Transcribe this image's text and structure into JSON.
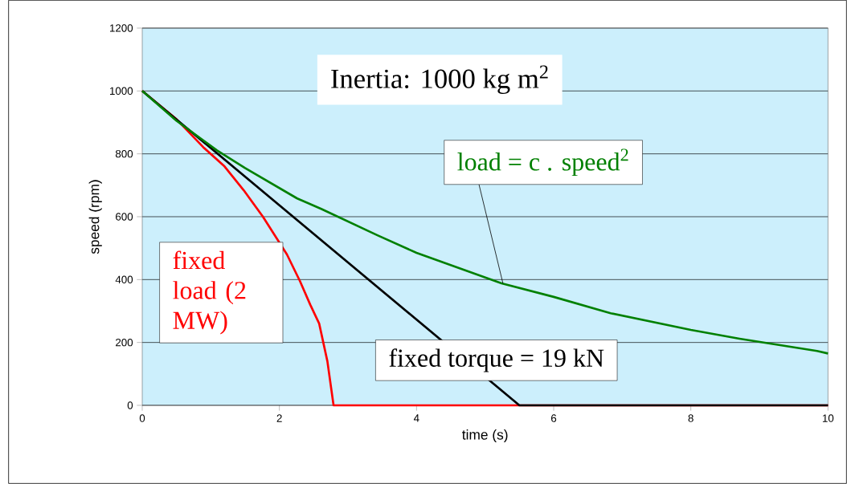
{
  "chart_data": {
    "type": "line",
    "xlabel": "time (s)",
    "ylabel": "speed (rpm)",
    "xlim": [
      0,
      10
    ],
    "ylim": [
      0,
      1200
    ],
    "xticks": [
      0,
      2,
      4,
      6,
      8,
      10
    ],
    "yticks": [
      0,
      200,
      400,
      600,
      800,
      1000,
      1200
    ],
    "grid": "y",
    "legend": false,
    "marker": "none",
    "line_style": "solid",
    "series": [
      {
        "name": "fixed load (2 MW)",
        "color": "#ff0000",
        "x": [
          0,
          0.5,
          0.89,
          1.2,
          1.48,
          1.76,
          2.11,
          2.3,
          2.45,
          2.58,
          2.7,
          2.79,
          10
        ],
        "values": [
          1000,
          910,
          821,
          760,
          684,
          600,
          480,
          395,
          320,
          260,
          140,
          0,
          0
        ]
      },
      {
        "name": "fixed torque = 19 kN",
        "color": "#000000",
        "x": [
          0,
          5.5,
          10
        ],
        "values": [
          1000,
          0,
          0
        ]
      },
      {
        "name": "load = c . speed$^{2}$",
        "color": "#008000",
        "x": [
          0,
          0.5,
          1.09,
          1.5,
          2.26,
          2.61,
          3.43,
          4,
          5.24,
          6,
          6.83,
          8,
          8.71,
          9.84,
          10
        ],
        "values": [
          1000,
          905,
          811,
          755,
          658,
          625,
          541,
          485,
          388,
          345,
          293,
          240,
          212,
          173,
          165
        ]
      }
    ],
    "annotations": [
      "Inertia: 1000 kg m$^{2}$"
    ]
  }
}
